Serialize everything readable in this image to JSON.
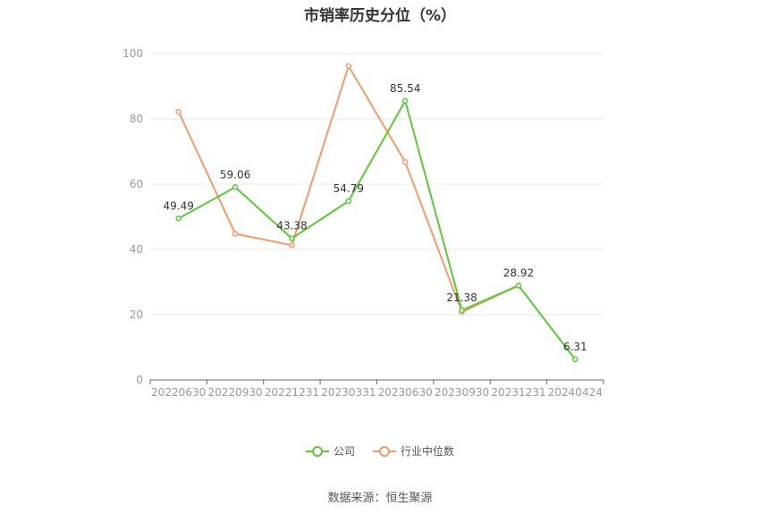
{
  "title": "市销率历史分位（%）",
  "source": "数据来源：恒生聚源",
  "colors": {
    "company": "#5cc83a",
    "industry": "#f59a6b",
    "grid": "#e4e6ef",
    "axis": "#999999"
  },
  "legend": [
    {
      "label": "公司",
      "color": "#5cc83a"
    },
    {
      "label": "行业中位数",
      "color": "#f59a6b"
    }
  ],
  "chart_data": {
    "type": "line",
    "categories": [
      "20220630",
      "20220930",
      "20221231",
      "20230331",
      "20230630",
      "20230930",
      "20231231",
      "20240424"
    ],
    "ylim": [
      0,
      100
    ],
    "yticks": [
      0,
      20,
      40,
      60,
      80,
      100
    ],
    "grid": true,
    "legend_position": "bottom",
    "series": [
      {
        "name": "公司",
        "values": [
          49.49,
          59.06,
          43.38,
          54.79,
          85.54,
          21.38,
          28.92,
          6.31
        ],
        "labels": true
      },
      {
        "name": "行业中位数",
        "values": [
          82.2,
          44.8,
          41.3,
          96.2,
          66.8,
          20.8,
          28.9,
          null
        ],
        "labels": false
      }
    ]
  }
}
